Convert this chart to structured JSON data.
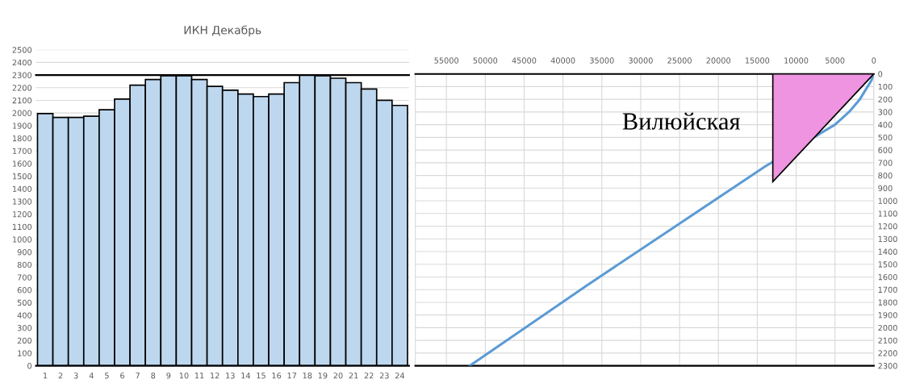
{
  "chart_data": [
    {
      "type": "bar",
      "title": "ИКН Декабрь",
      "categories": [
        "1",
        "2",
        "3",
        "4",
        "5",
        "6",
        "7",
        "8",
        "9",
        "10",
        "11",
        "12",
        "13",
        "14",
        "15",
        "16",
        "17",
        "18",
        "19",
        "20",
        "21",
        "22",
        "23",
        "24"
      ],
      "series": [
        {
          "color": "#bdd7ee",
          "values": [
            1995,
            1965,
            1965,
            1975,
            2025,
            2110,
            2220,
            2265,
            2295,
            2295,
            2265,
            2210,
            2180,
            2150,
            2130,
            2150,
            2240,
            2300,
            2295,
            2275,
            2240,
            2190,
            2100,
            2060
          ]
        }
      ],
      "ylim": [
        0,
        2500
      ],
      "yticks": [
        0,
        100,
        200,
        300,
        400,
        500,
        600,
        700,
        800,
        900,
        1000,
        1100,
        1200,
        1300,
        1400,
        1500,
        1600,
        1700,
        1800,
        1900,
        2000,
        2100,
        2200,
        2300,
        2400,
        2500
      ],
      "grid": "y",
      "ref_lines": [
        {
          "axis": "y",
          "value": 2300,
          "color": "#000000"
        }
      ]
    },
    {
      "type": "line",
      "series": [
        {
          "type": "line",
          "color": "#5b9bd5",
          "x": [
            0,
            300,
            800,
            1800,
            3200,
            5000,
            14000,
            37000,
            52000
          ],
          "values": [
            0,
            50,
            100,
            200,
            300,
            400,
            730,
            1670,
            2300
          ]
        },
        {
          "type": "area",
          "color": "#ee94e0",
          "x": [
            0,
            13000,
            13000
          ],
          "values": [
            0,
            0,
            850
          ]
        }
      ],
      "xlim": [
        59000,
        0
      ],
      "xticks": [
        55000,
        50000,
        45000,
        40000,
        35000,
        30000,
        25000,
        20000,
        15000,
        10000,
        5000,
        0
      ],
      "ylim": [
        2300,
        0
      ],
      "yticks": [
        0,
        100,
        200,
        300,
        400,
        500,
        600,
        700,
        800,
        900,
        1000,
        1100,
        1200,
        1300,
        1400,
        1500,
        1600,
        1700,
        1800,
        1900,
        2000,
        2100,
        2200,
        2300
      ],
      "grid": true,
      "annotations": [
        "Вилюйская"
      ]
    }
  ]
}
